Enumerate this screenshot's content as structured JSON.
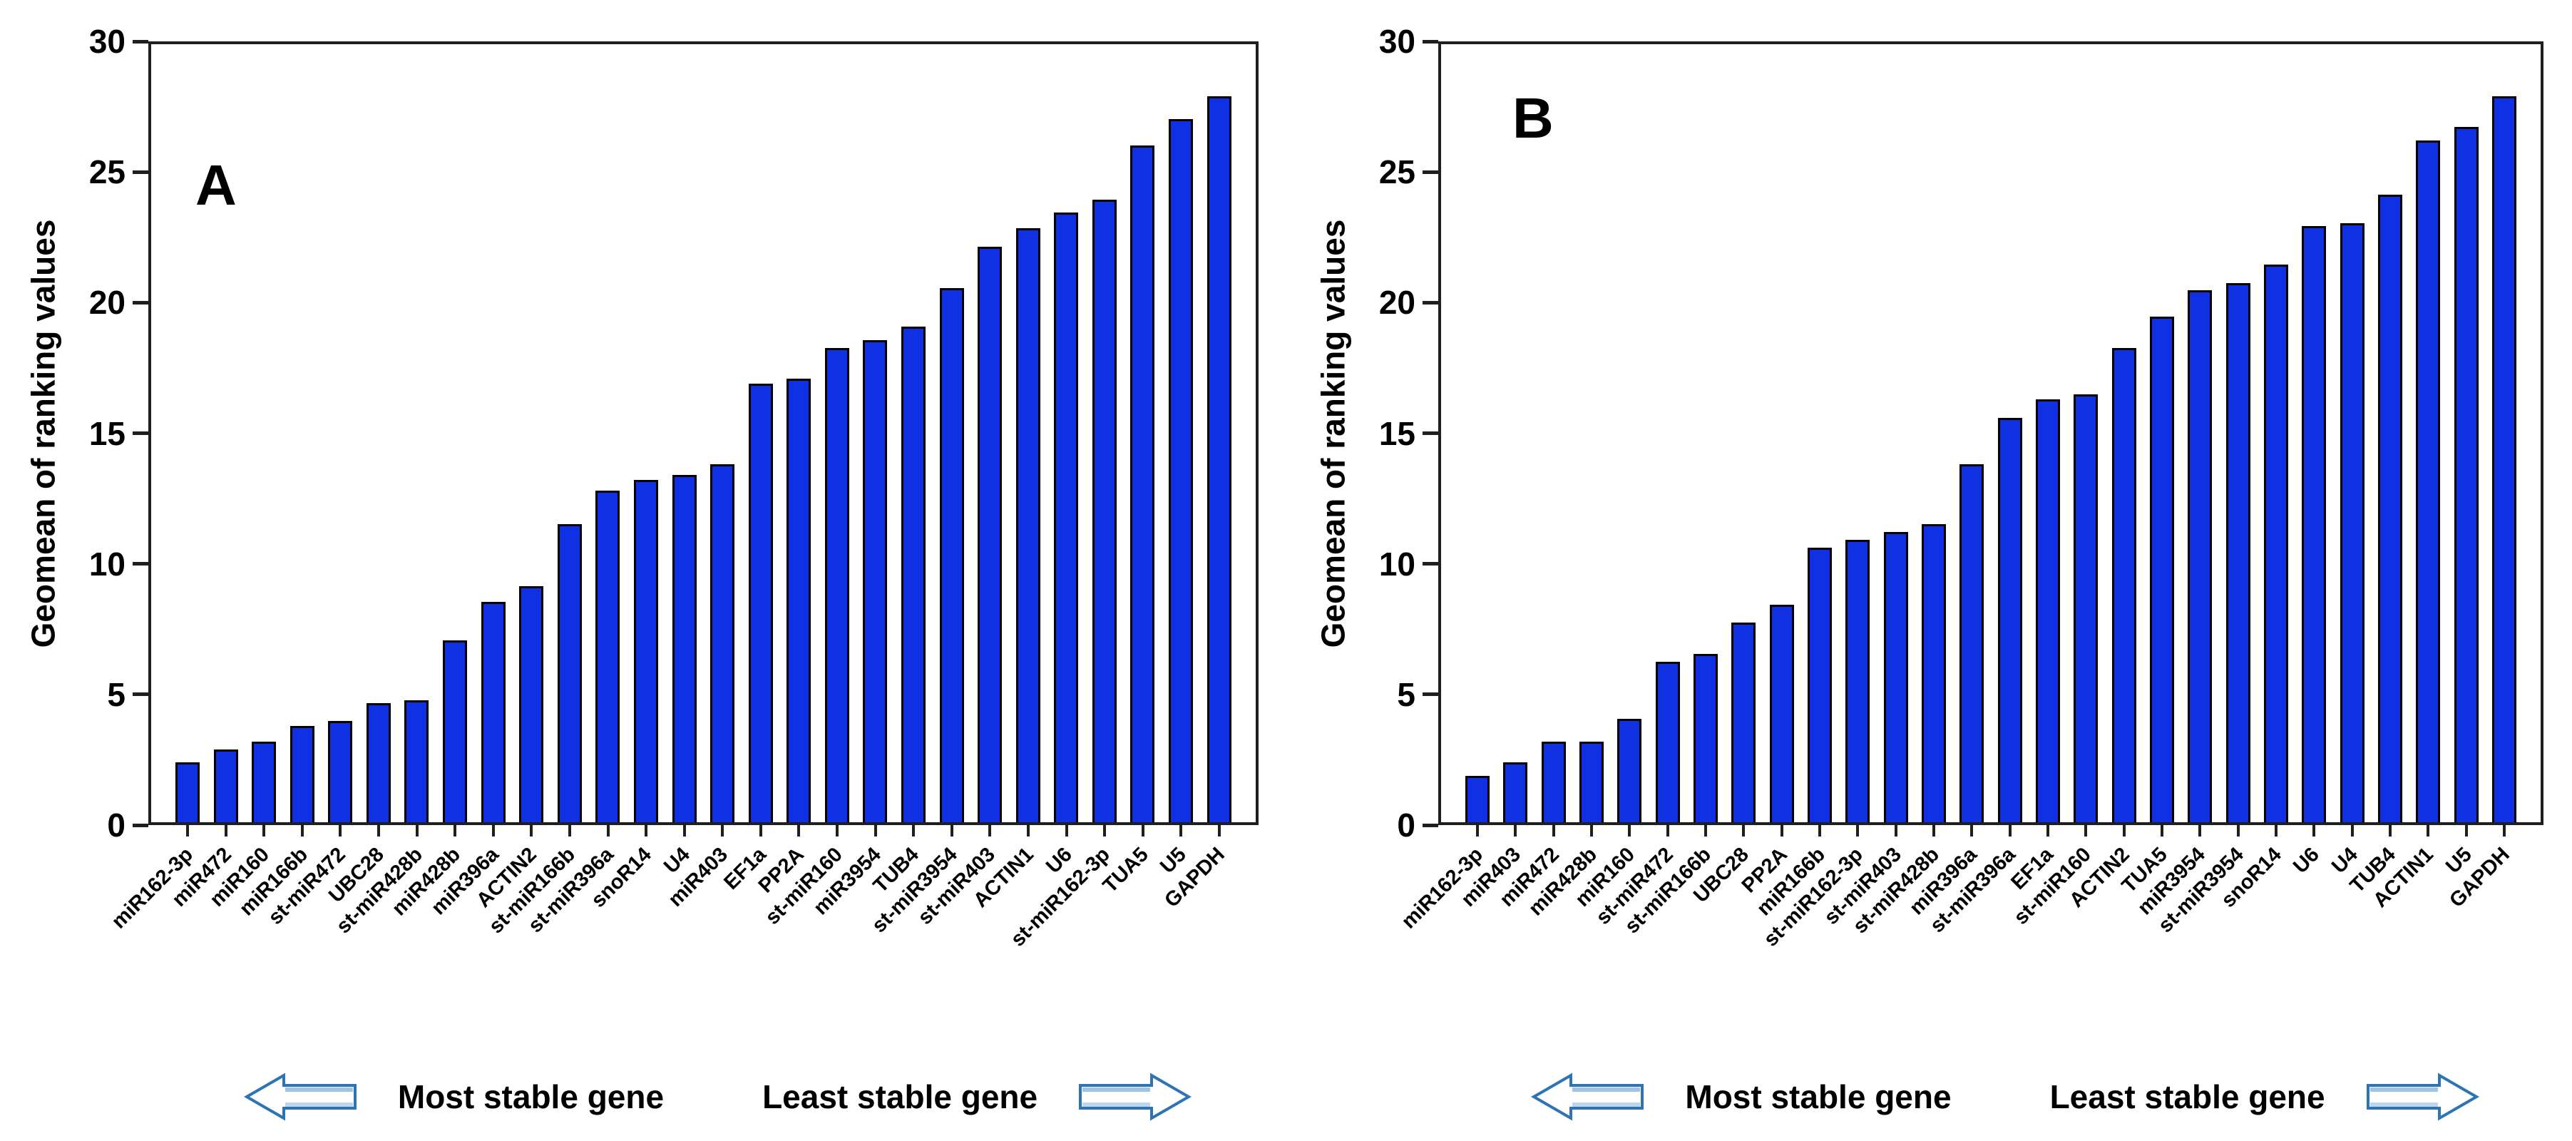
{
  "figure": {
    "background": "#ffffff",
    "description": "Two-panel bar chart of gene expression stability ranking"
  },
  "colors": {
    "bar_fill": "#0F31E3",
    "bar_border": "#000000",
    "axis": "#1f1f1f",
    "arrow_outline": "#2E74B5",
    "arrow_highlight": "#9DC3E6",
    "text": "#000000"
  },
  "caption": {
    "most_stable": "Most stable gene",
    "least_stable": "Least stable gene"
  },
  "chart_data": [
    {
      "type": "bar",
      "panel_label": "A",
      "title": "",
      "xlabel": "",
      "ylabel": "Geomean of ranking values",
      "ylim": [
        0,
        30
      ],
      "yticks": [
        0,
        5,
        10,
        15,
        20,
        25,
        30
      ],
      "grid": false,
      "legend": null,
      "bar_color": "#0F31E3",
      "categories": [
        "miR162-3p",
        "miR472",
        "miR160",
        "miR166b",
        "st-miR472",
        "UBC28",
        "st-miR428b",
        "miR428b",
        "miR396a",
        "ACTIN2",
        "st-miR166b",
        "st-miR396a",
        "snoR14",
        "U4",
        "miR403",
        "EF1a",
        "PP2A",
        "st-miR160",
        "miR3954",
        "TUB4",
        "st-miR3954",
        "st-miR403",
        "ACTIN1",
        "U6",
        "st-miR162-3p",
        "TUA5",
        "U5",
        "GAPDH"
      ],
      "values": [
        2.3,
        2.8,
        3.1,
        3.7,
        3.9,
        4.6,
        4.7,
        7.0,
        8.5,
        9.1,
        11.5,
        12.8,
        13.2,
        13.4,
        13.8,
        16.9,
        17.1,
        18.3,
        18.6,
        19.1,
        20.6,
        22.2,
        22.9,
        23.5,
        24.0,
        26.1,
        27.1,
        28.0
      ]
    },
    {
      "type": "bar",
      "panel_label": "B",
      "title": "",
      "xlabel": "",
      "ylabel": "Geomean of ranking values",
      "ylim": [
        0,
        30
      ],
      "yticks": [
        0,
        5,
        10,
        15,
        20,
        25,
        30
      ],
      "grid": false,
      "legend": null,
      "bar_color": "#0F31E3",
      "categories": [
        "miR162-3p",
        "miR403",
        "miR472",
        "miR428b",
        "miR160",
        "st-miR472",
        "st-miR166b",
        "UBC28",
        "PP2A",
        "miR166b",
        "st-miR162-3p",
        "st-miR403",
        "st-miR428b",
        "miR396a",
        "st-miR396a",
        "EF1a",
        "st-miR160",
        "ACTIN2",
        "TUA5",
        "miR3954",
        "st-miR3954",
        "snoR14",
        "U6",
        "U4",
        "TUB4",
        "ACTIN1",
        "U5",
        "GAPDH"
      ],
      "values": [
        1.8,
        2.3,
        3.1,
        3.1,
        4.0,
        6.2,
        6.5,
        7.7,
        8.4,
        10.6,
        10.9,
        11.2,
        11.5,
        13.8,
        15.6,
        16.3,
        16.5,
        18.3,
        19.5,
        20.5,
        20.8,
        21.5,
        23.0,
        23.1,
        24.2,
        26.3,
        26.8,
        28.0
      ]
    }
  ]
}
